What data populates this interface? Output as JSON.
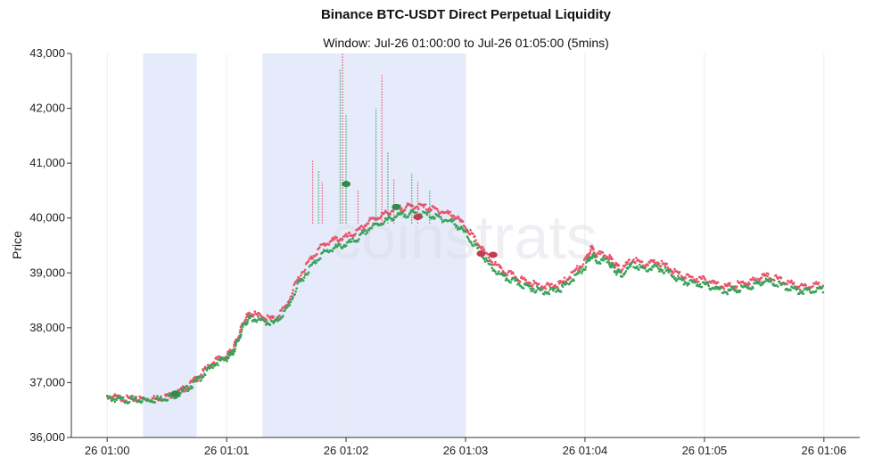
{
  "chart_data": {
    "type": "scatter",
    "title": "Binance BTC-USDT Direct Perpetual Liquidity",
    "subtitle": "Window: Jul-26 01:00:00 to Jul-26 01:05:00 (5mins)",
    "xlabel": "",
    "ylabel": "Price",
    "watermark": "coinstrats",
    "x_ticks": [
      "26 01:00",
      "26 01:01",
      "26 01:02",
      "26 01:03",
      "26 01:04",
      "26 01:05",
      "26 01:06"
    ],
    "x_tick_minutes": [
      0,
      1,
      2,
      3,
      4,
      5,
      6
    ],
    "xlim_minutes": [
      -0.3,
      6.3
    ],
    "y_ticks": [
      36000,
      37000,
      38000,
      39000,
      40000,
      41000,
      42000,
      43000
    ],
    "y_tick_labels": [
      "36,000",
      "37,000",
      "38,000",
      "39,000",
      "40,000",
      "41,000",
      "42,000",
      "43,000"
    ],
    "ylim": [
      36000,
      43000
    ],
    "grid": "vertical",
    "colors": {
      "ask": "#e8546b",
      "bid": "#3aa35a",
      "shade": "#e6ebfb"
    },
    "shaded_ranges_minutes": [
      [
        0.3,
        0.75
      ],
      [
        1.3,
        3.0
      ]
    ],
    "series": [
      {
        "role": "ask",
        "points": [
          [
            0,
            36750
          ],
          [
            0.1,
            36720
          ],
          [
            0.2,
            36700
          ],
          [
            0.3,
            36700
          ],
          [
            0.4,
            36710
          ],
          [
            0.5,
            36750
          ],
          [
            0.6,
            36820
          ],
          [
            0.7,
            36980
          ],
          [
            0.8,
            37180
          ],
          [
            0.9,
            37400
          ],
          [
            1.0,
            37480
          ],
          [
            1.05,
            37600
          ],
          [
            1.1,
            37850
          ],
          [
            1.15,
            38150
          ],
          [
            1.2,
            38260
          ],
          [
            1.3,
            38200
          ],
          [
            1.4,
            38150
          ],
          [
            1.5,
            38400
          ],
          [
            1.6,
            38900
          ],
          [
            1.7,
            39250
          ],
          [
            1.8,
            39500
          ],
          [
            1.9,
            39600
          ],
          [
            2.0,
            39650
          ],
          [
            2.1,
            39750
          ],
          [
            2.2,
            39950
          ],
          [
            2.3,
            40050
          ],
          [
            2.4,
            40150
          ],
          [
            2.5,
            40200
          ],
          [
            2.6,
            40220
          ],
          [
            2.7,
            40180
          ],
          [
            2.8,
            40120
          ],
          [
            2.9,
            40050
          ],
          [
            3.0,
            39850
          ],
          [
            3.1,
            39550
          ],
          [
            3.2,
            39250
          ],
          [
            3.3,
            39050
          ],
          [
            3.4,
            38950
          ],
          [
            3.5,
            38850
          ],
          [
            3.6,
            38780
          ],
          [
            3.7,
            38750
          ],
          [
            3.8,
            38800
          ],
          [
            3.9,
            39000
          ],
          [
            4.0,
            39200
          ],
          [
            4.05,
            39450
          ],
          [
            4.1,
            39350
          ],
          [
            4.2,
            39300
          ],
          [
            4.25,
            39150
          ],
          [
            4.3,
            39050
          ],
          [
            4.4,
            39250
          ],
          [
            4.5,
            39150
          ],
          [
            4.6,
            39200
          ],
          [
            4.7,
            39100
          ],
          [
            4.8,
            38950
          ],
          [
            4.9,
            38900
          ],
          [
            5.0,
            38880
          ],
          [
            5.1,
            38800
          ],
          [
            5.2,
            38750
          ],
          [
            5.3,
            38800
          ],
          [
            5.4,
            38850
          ],
          [
            5.5,
            38950
          ],
          [
            5.6,
            38900
          ],
          [
            5.7,
            38820
          ],
          [
            5.8,
            38750
          ],
          [
            5.9,
            38780
          ],
          [
            6.0,
            38780
          ]
        ]
      },
      {
        "role": "bid",
        "points": [
          [
            0,
            36720
          ],
          [
            0.1,
            36690
          ],
          [
            0.2,
            36680
          ],
          [
            0.3,
            36680
          ],
          [
            0.4,
            36690
          ],
          [
            0.5,
            36730
          ],
          [
            0.6,
            36790
          ],
          [
            0.7,
            36940
          ],
          [
            0.8,
            37130
          ],
          [
            0.9,
            37350
          ],
          [
            1.0,
            37440
          ],
          [
            1.05,
            37540
          ],
          [
            1.1,
            37780
          ],
          [
            1.15,
            38080
          ],
          [
            1.2,
            38180
          ],
          [
            1.3,
            38120
          ],
          [
            1.4,
            38080
          ],
          [
            1.5,
            38320
          ],
          [
            1.6,
            38780
          ],
          [
            1.7,
            39100
          ],
          [
            1.8,
            39350
          ],
          [
            1.9,
            39450
          ],
          [
            2.0,
            39520
          ],
          [
            2.1,
            39620
          ],
          [
            2.2,
            39820
          ],
          [
            2.3,
            39920
          ],
          [
            2.4,
            40020
          ],
          [
            2.5,
            40070
          ],
          [
            2.6,
            40090
          ],
          [
            2.7,
            40050
          ],
          [
            2.8,
            39990
          ],
          [
            2.9,
            39920
          ],
          [
            3.0,
            39720
          ],
          [
            3.1,
            39430
          ],
          [
            3.2,
            39130
          ],
          [
            3.3,
            38940
          ],
          [
            3.4,
            38850
          ],
          [
            3.5,
            38760
          ],
          [
            3.6,
            38690
          ],
          [
            3.7,
            38660
          ],
          [
            3.8,
            38710
          ],
          [
            3.9,
            38900
          ],
          [
            4.0,
            39090
          ],
          [
            4.05,
            39320
          ],
          [
            4.1,
            39240
          ],
          [
            4.2,
            39200
          ],
          [
            4.25,
            39050
          ],
          [
            4.3,
            38960
          ],
          [
            4.4,
            39150
          ],
          [
            4.5,
            39060
          ],
          [
            4.6,
            39100
          ],
          [
            4.7,
            39010
          ],
          [
            4.8,
            38860
          ],
          [
            4.9,
            38810
          ],
          [
            5.0,
            38790
          ],
          [
            5.1,
            38710
          ],
          [
            5.2,
            38670
          ],
          [
            5.3,
            38710
          ],
          [
            5.4,
            38760
          ],
          [
            5.5,
            38860
          ],
          [
            5.6,
            38810
          ],
          [
            5.7,
            38730
          ],
          [
            5.8,
            38670
          ],
          [
            5.9,
            38690
          ],
          [
            6.0,
            38700
          ]
        ]
      }
    ],
    "spikes": [
      [
        1.72,
        41050
      ],
      [
        1.77,
        40850
      ],
      [
        1.8,
        40650
      ],
      [
        1.95,
        42700
      ],
      [
        1.97,
        43000
      ],
      [
        2.0,
        41900
      ],
      [
        2.1,
        40500
      ],
      [
        2.25,
        42000
      ],
      [
        2.3,
        42600
      ],
      [
        2.35,
        41200
      ],
      [
        2.4,
        40700
      ],
      [
        2.55,
        40800
      ],
      [
        2.6,
        40650
      ],
      [
        2.7,
        40500
      ]
    ],
    "trade_markers": [
      {
        "role": "bid",
        "x": 0.57,
        "y": 36800
      },
      {
        "role": "bid",
        "x": 2.0,
        "y": 40620
      },
      {
        "role": "bid",
        "x": 2.42,
        "y": 40200
      },
      {
        "role": "ask",
        "x": 2.6,
        "y": 40020
      },
      {
        "role": "ask",
        "x": 3.13,
        "y": 39350
      },
      {
        "role": "ask",
        "x": 3.23,
        "y": 39330
      }
    ]
  }
}
